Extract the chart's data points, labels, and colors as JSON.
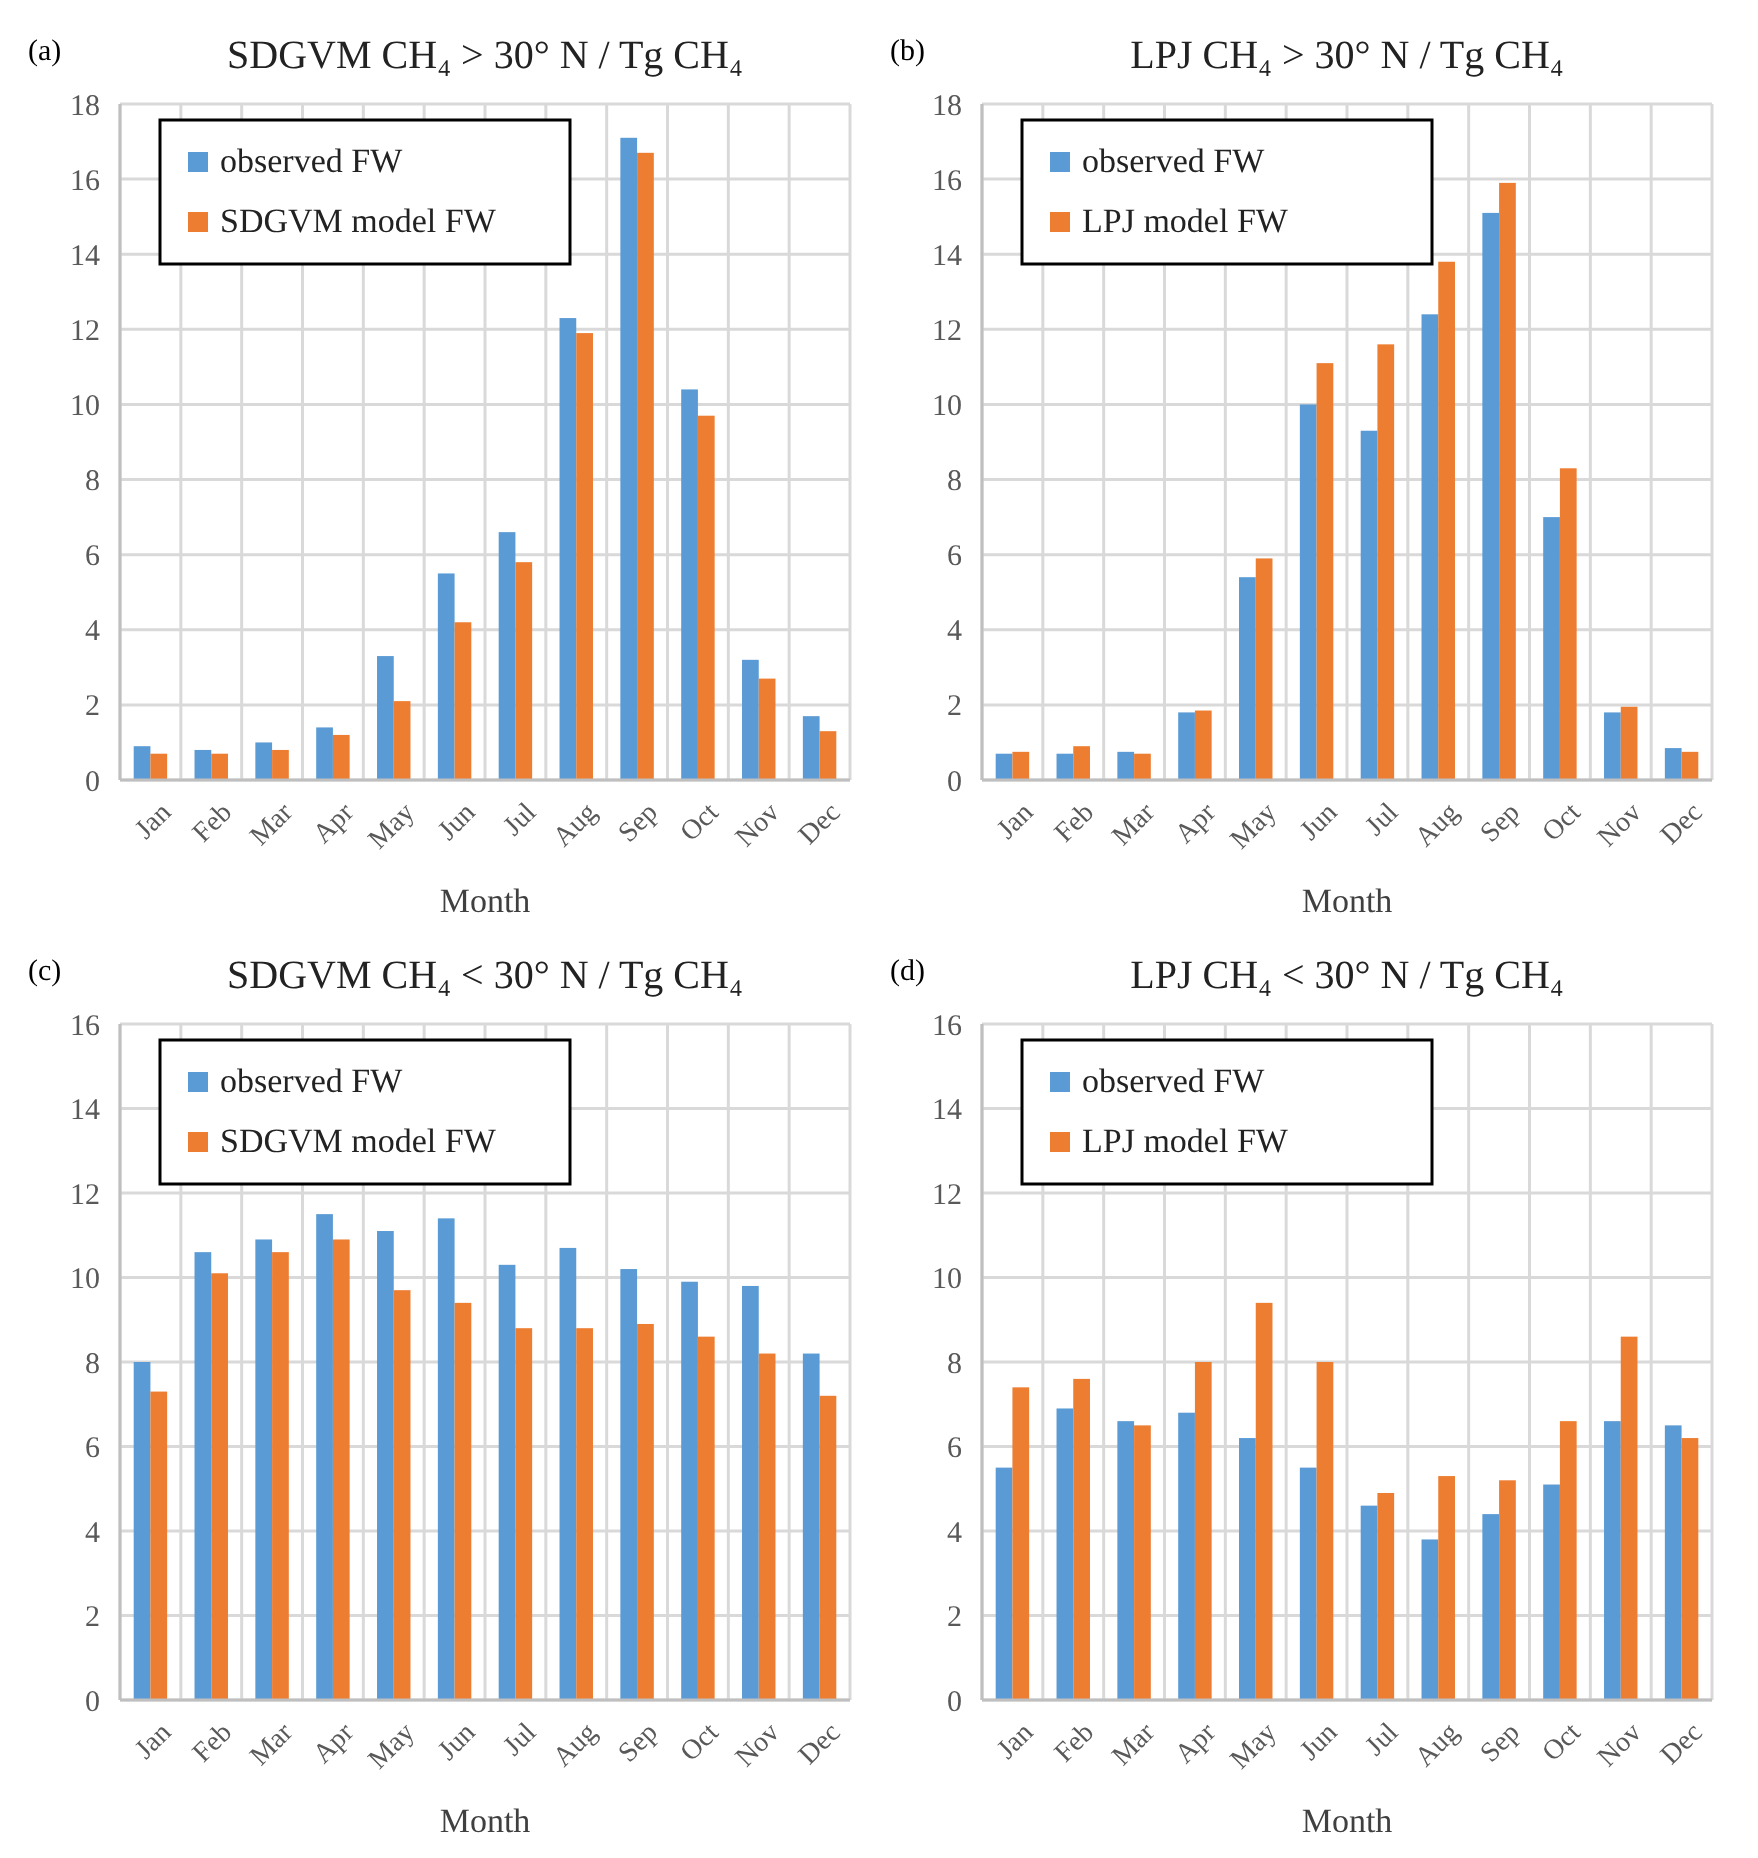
{
  "chart_data": [
    {
      "type": "bar",
      "title": "SDGVM CH₄ > 30° N / Tg CH₄",
      "annotations": [
        "(a)"
      ],
      "xlabel": "Month",
      "categories": [
        "Jan",
        "Feb",
        "Mar",
        "Apr",
        "May",
        "Jun",
        "Jul",
        "Aug",
        "Sep",
        "Oct",
        "Nov",
        "Dec"
      ],
      "ylim": [
        0,
        18
      ],
      "yticks": [
        0,
        2,
        4,
        6,
        8,
        10,
        12,
        14,
        16,
        18
      ],
      "grid": true,
      "legend": "top left",
      "series": [
        {
          "name": "observed FW",
          "color": "#5b9bd5",
          "values": [
            0.9,
            0.8,
            1.0,
            1.4,
            3.3,
            5.5,
            6.6,
            12.3,
            17.1,
            10.4,
            3.2,
            1.7
          ]
        },
        {
          "name": "SDGVM model FW",
          "color": "#ed7d31",
          "values": [
            0.7,
            0.7,
            0.8,
            1.2,
            2.1,
            4.2,
            5.8,
            11.9,
            16.7,
            9.7,
            2.7,
            1.3
          ]
        }
      ]
    },
    {
      "type": "bar",
      "title": "LPJ CH₄ > 30° N / Tg CH₄",
      "annotations": [
        "(b)"
      ],
      "xlabel": "Month",
      "categories": [
        "Jan",
        "Feb",
        "Mar",
        "Apr",
        "May",
        "Jun",
        "Jul",
        "Aug",
        "Sep",
        "Oct",
        "Nov",
        "Dec"
      ],
      "ylim": [
        0,
        18
      ],
      "yticks": [
        0,
        2,
        4,
        6,
        8,
        10,
        12,
        14,
        16,
        18
      ],
      "grid": true,
      "legend": "top left",
      "series": [
        {
          "name": "observed FW",
          "color": "#5b9bd5",
          "values": [
            0.7,
            0.7,
            0.75,
            1.8,
            5.4,
            10.0,
            9.3,
            12.4,
            15.1,
            7.0,
            1.8,
            0.85
          ]
        },
        {
          "name": "LPJ model FW",
          "color": "#ed7d31",
          "values": [
            0.75,
            0.9,
            0.7,
            1.85,
            5.9,
            11.1,
            11.6,
            13.8,
            15.9,
            8.3,
            1.95,
            0.75
          ]
        }
      ]
    },
    {
      "type": "bar",
      "title": "SDGVM CH₄ < 30° N / Tg CH₄",
      "annotations": [
        "(c)"
      ],
      "xlabel": "Month",
      "categories": [
        "Jan",
        "Feb",
        "Mar",
        "Apr",
        "May",
        "Jun",
        "Jul",
        "Aug",
        "Sep",
        "Oct",
        "Nov",
        "Dec"
      ],
      "ylim": [
        0,
        16
      ],
      "yticks": [
        0,
        2,
        4,
        6,
        8,
        10,
        12,
        14,
        16
      ],
      "grid": true,
      "legend": "top left",
      "series": [
        {
          "name": "observed FW",
          "color": "#5b9bd5",
          "values": [
            8.0,
            10.6,
            10.9,
            11.5,
            11.1,
            11.4,
            10.3,
            10.7,
            10.2,
            9.9,
            9.8,
            8.2
          ]
        },
        {
          "name": "SDGVM model FW",
          "color": "#ed7d31",
          "values": [
            7.3,
            10.1,
            10.6,
            10.9,
            9.7,
            9.4,
            8.8,
            8.8,
            8.9,
            8.6,
            8.2,
            7.2
          ]
        }
      ]
    },
    {
      "type": "bar",
      "title": "LPJ CH₄ < 30° N / Tg CH₄",
      "annotations": [
        "(d)"
      ],
      "xlabel": "Month",
      "categories": [
        "Jan",
        "Feb",
        "Mar",
        "Apr",
        "May",
        "Jun",
        "Jul",
        "Aug",
        "Sep",
        "Oct",
        "Nov",
        "Dec"
      ],
      "ylim": [
        0,
        16
      ],
      "yticks": [
        0,
        2,
        4,
        6,
        8,
        10,
        12,
        14,
        16
      ],
      "grid": true,
      "legend": "top left",
      "series": [
        {
          "name": "observed FW",
          "color": "#5b9bd5",
          "values": [
            5.5,
            6.9,
            6.6,
            6.8,
            6.2,
            5.5,
            4.6,
            3.8,
            4.4,
            5.1,
            6.6,
            6.5
          ]
        },
        {
          "name": "LPJ model FW",
          "color": "#ed7d31",
          "values": [
            7.4,
            7.6,
            6.5,
            8.0,
            9.4,
            8.0,
            4.9,
            5.3,
            5.2,
            6.6,
            8.6,
            6.2
          ]
        }
      ]
    }
  ]
}
